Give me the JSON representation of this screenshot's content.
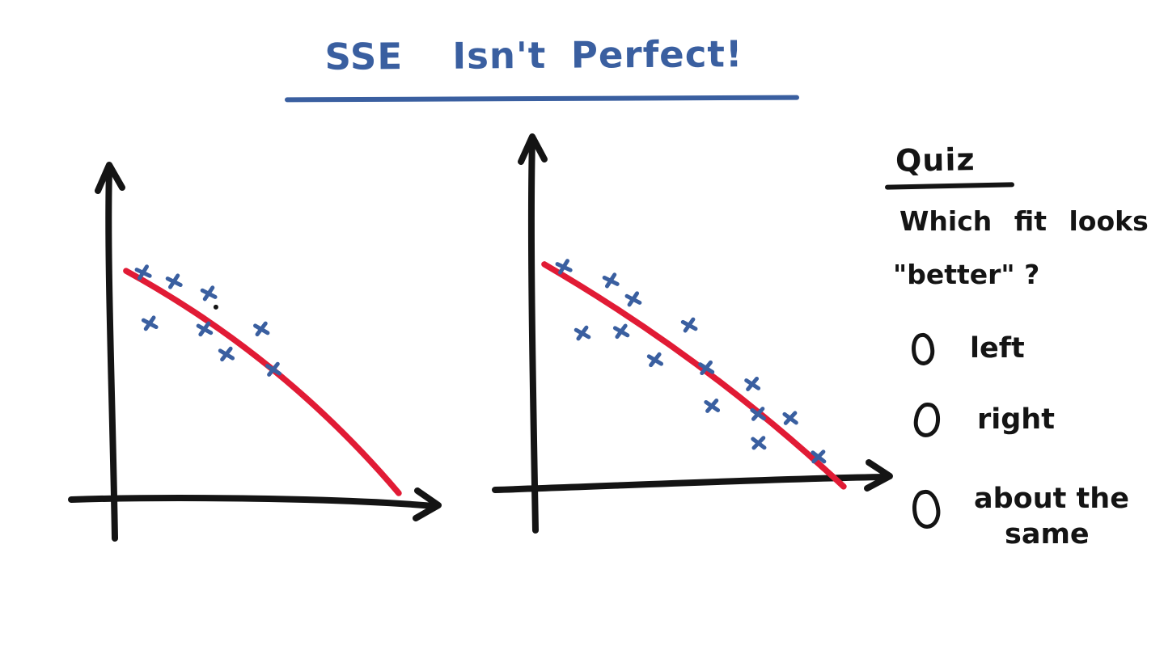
{
  "colors": {
    "background": "#ffffff",
    "ink_blue": "#3a5fa0",
    "ink_red": "#e11b35",
    "ink_black": "#141414"
  },
  "title": {
    "text": "SSE  Isn't Perfect!"
  },
  "quiz": {
    "heading": "Quiz",
    "question_line1": "Which fit looks",
    "question_line2": "\"better\" ?",
    "options": [
      {
        "label": "left"
      },
      {
        "label": "right"
      },
      {
        "label": "about the",
        "label_line2": "same"
      }
    ]
  },
  "chart_data": [
    {
      "type": "scatter",
      "name": "left-plot",
      "title": "",
      "xlabel": "",
      "ylabel": "",
      "axes_labeled": false,
      "grid": false,
      "xlim": [
        0,
        11
      ],
      "ylim": [
        0,
        11
      ],
      "points": [
        [
          1.0,
          7.65
        ],
        [
          2.03,
          7.35
        ],
        [
          3.19,
          6.95
        ],
        [
          1.22,
          5.95
        ],
        [
          3.05,
          5.76
        ],
        [
          4.95,
          5.76
        ],
        [
          3.78,
          4.92
        ],
        [
          5.35,
          4.41
        ]
      ],
      "stray_dot": [
        3.43,
        6.49
      ],
      "fit_line": {
        "start": [
          0.43,
          7.7
        ],
        "end": [
          9.54,
          0.27
        ]
      }
    },
    {
      "type": "scatter",
      "name": "right-plot",
      "title": "",
      "xlabel": "",
      "ylabel": "",
      "axes_labeled": false,
      "grid": false,
      "xlim": [
        0,
        11
      ],
      "ylim": [
        0,
        11
      ],
      "points": [
        [
          1.0,
          7.3
        ],
        [
          2.57,
          6.84
        ],
        [
          3.32,
          6.22
        ],
        [
          5.19,
          5.35
        ],
        [
          1.62,
          5.08
        ],
        [
          2.92,
          5.14
        ],
        [
          4.05,
          4.19
        ],
        [
          5.76,
          3.92
        ],
        [
          7.3,
          3.38
        ],
        [
          5.95,
          2.65
        ],
        [
          7.49,
          2.38
        ],
        [
          8.57,
          2.24
        ],
        [
          7.51,
          1.41
        ],
        [
          9.51,
          0.95
        ]
      ],
      "fit_line": {
        "start": [
          0.35,
          7.38
        ],
        "end": [
          10.35,
          -0.05
        ]
      }
    }
  ]
}
